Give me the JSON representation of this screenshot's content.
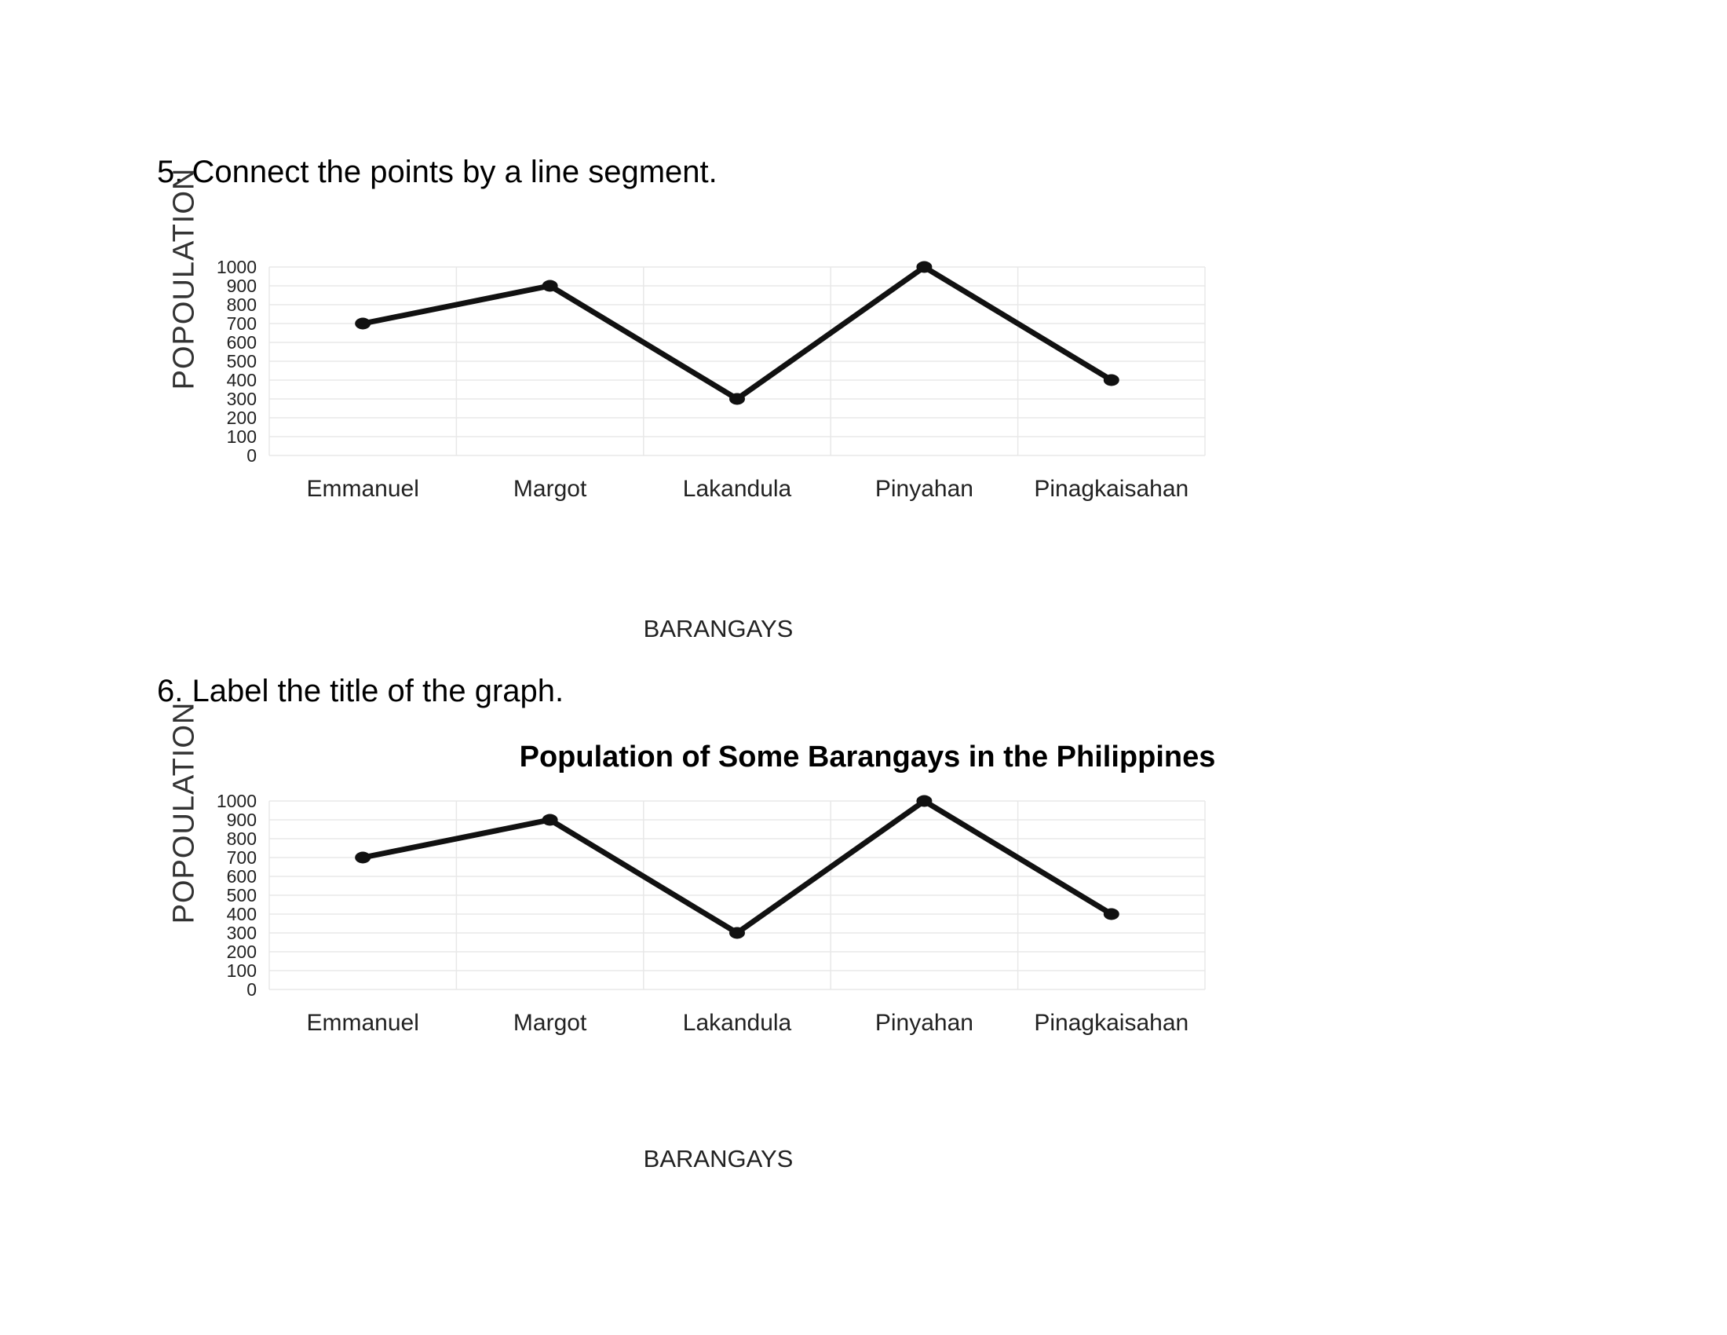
{
  "instructions": {
    "step5": "5. Connect the points by a line segment.",
    "step6": "6. Label the title of the graph."
  },
  "colors": {
    "line": "#111111",
    "grid": "#e8e8e8",
    "tick_text": "#222222"
  },
  "chart_data": [
    {
      "type": "line",
      "title": "",
      "xlabel": "BARANGAYS",
      "ylabel": "POPOULATION",
      "categories": [
        "Emmanuel",
        "Margot",
        "Lakandula",
        "Pinyahan",
        "Pinagkaisahan"
      ],
      "values": [
        700,
        900,
        300,
        1000,
        400
      ],
      "ylim": [
        0,
        1000
      ],
      "yticks": [
        0,
        100,
        200,
        300,
        400,
        500,
        600,
        700,
        800,
        900,
        1000
      ],
      "grid": true,
      "legend": "none"
    },
    {
      "type": "line",
      "title": "Population of Some Barangays in the Philippines",
      "xlabel": "BARANGAYS",
      "ylabel": "POPOULATION",
      "categories": [
        "Emmanuel",
        "Margot",
        "Lakandula",
        "Pinyahan",
        "Pinagkaisahan"
      ],
      "values": [
        700,
        900,
        300,
        1000,
        400
      ],
      "ylim": [
        0,
        1000
      ],
      "yticks": [
        0,
        100,
        200,
        300,
        400,
        500,
        600,
        700,
        800,
        900,
        1000
      ],
      "grid": true,
      "legend": "none"
    }
  ]
}
